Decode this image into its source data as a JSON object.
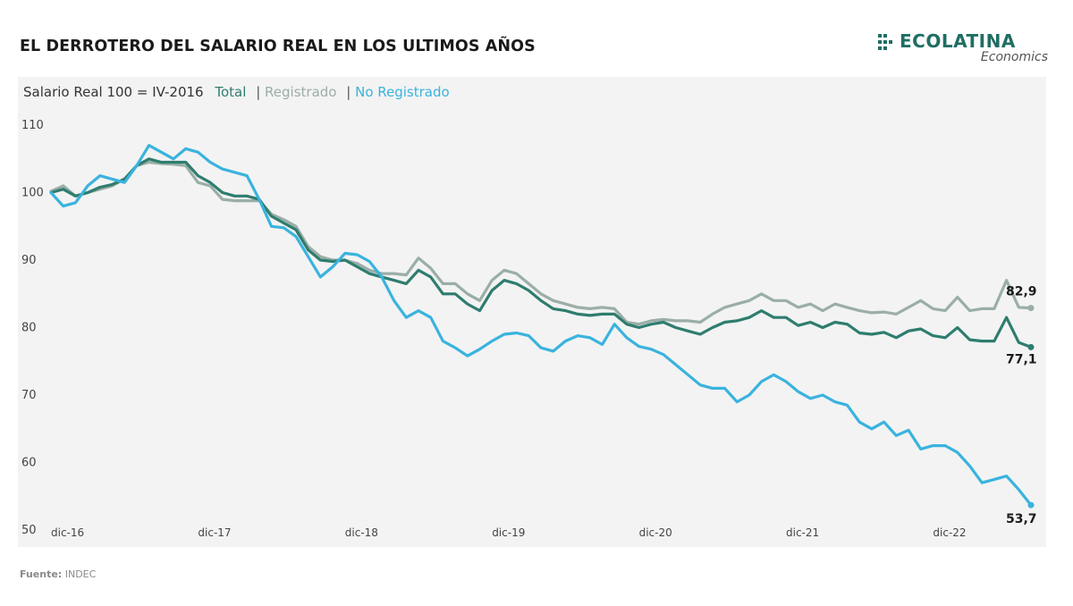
{
  "header": {
    "title": "EL DERROTERO DEL SALARIO REAL EN LOS ULTIMOS AÑOS"
  },
  "logo": {
    "name": "ECOLATINA",
    "sub": "Economics",
    "color": "#1f6e63"
  },
  "footer": {
    "source_label": "Fuente:",
    "source_value": "INDEC"
  },
  "chart_data": {
    "type": "line",
    "subtitle": "Salario Real 100 = IV-2016",
    "ylim": [
      50,
      110
    ],
    "yticks": [
      110,
      100,
      90,
      80,
      70,
      60,
      50
    ],
    "x_tick_labels": [
      "dic-16",
      "dic-17",
      "dic-18",
      "dic-19",
      "dic-20",
      "dic-21",
      "dic-22"
    ],
    "x_tick_indices": [
      0,
      12,
      24,
      36,
      48,
      60,
      72
    ],
    "grid": false,
    "series": [
      {
        "name": "Total",
        "color": "#2e7d6e",
        "end_label": "77,1",
        "values": [
          100.0,
          100.5,
          99.5,
          100.0,
          100.8,
          101.2,
          102.0,
          104.0,
          105.0,
          104.5,
          104.5,
          104.5,
          102.5,
          101.5,
          100.0,
          99.5,
          99.5,
          99.0,
          96.5,
          95.5,
          94.5,
          91.5,
          90.0,
          89.8,
          90.0,
          89.0,
          88.0,
          87.5,
          87.0,
          86.5,
          88.5,
          87.5,
          85.0,
          85.0,
          83.5,
          82.5,
          85.5,
          87.0,
          86.5,
          85.5,
          84.0,
          82.8,
          82.5,
          82.0,
          81.8,
          82.0,
          82.0,
          80.5,
          80.0,
          80.5,
          80.8,
          80.0,
          79.5,
          79.0,
          80.0,
          80.8,
          81.0,
          81.5,
          82.5,
          81.5,
          81.5,
          80.3,
          80.8,
          80.0,
          80.8,
          80.5,
          79.2,
          79.0,
          79.3,
          78.5,
          79.5,
          79.8,
          78.8,
          78.5,
          80.0,
          78.2,
          78.0,
          78.0,
          81.5,
          77.8,
          77.1
        ]
      },
      {
        "name": "Registrado",
        "color": "#9aaea7",
        "end_label": "82,9",
        "values": [
          100.2,
          101.0,
          99.5,
          100.0,
          100.5,
          101.0,
          102.0,
          104.0,
          104.5,
          104.3,
          104.2,
          104.0,
          101.5,
          101.0,
          99.0,
          98.8,
          98.8,
          98.8,
          96.8,
          96.0,
          95.0,
          92.0,
          90.5,
          90.0,
          90.0,
          89.5,
          88.5,
          88.0,
          88.0,
          87.8,
          90.3,
          88.8,
          86.5,
          86.5,
          85.0,
          84.0,
          87.0,
          88.5,
          88.0,
          86.5,
          85.0,
          84.0,
          83.5,
          83.0,
          82.8,
          83.0,
          82.8,
          80.8,
          80.5,
          81.0,
          81.2,
          81.0,
          81.0,
          80.8,
          82.0,
          83.0,
          83.5,
          84.0,
          85.0,
          84.0,
          84.0,
          83.0,
          83.5,
          82.5,
          83.5,
          83.0,
          82.5,
          82.2,
          82.3,
          82.0,
          83.0,
          84.0,
          82.8,
          82.5,
          84.5,
          82.5,
          82.8,
          82.8,
          87.0,
          83.0,
          82.9
        ]
      },
      {
        "name": "No Registrado",
        "color": "#3ab3de",
        "end_label": "53,7",
        "values": [
          100.0,
          98.0,
          98.5,
          101.0,
          102.5,
          102.0,
          101.5,
          104.0,
          107.0,
          106.0,
          105.0,
          106.5,
          106.0,
          104.5,
          103.5,
          103.0,
          102.5,
          99.0,
          95.0,
          94.8,
          93.5,
          90.5,
          87.5,
          89.0,
          91.0,
          90.8,
          89.8,
          87.5,
          84.0,
          81.5,
          82.5,
          81.5,
          78.0,
          77.0,
          75.8,
          76.8,
          78.0,
          79.0,
          79.2,
          78.8,
          77.0,
          76.5,
          78.0,
          78.8,
          78.5,
          77.5,
          80.5,
          78.5,
          77.2,
          76.8,
          76.0,
          74.5,
          73.0,
          71.5,
          71.0,
          71.0,
          69.0,
          70.0,
          72.0,
          73.0,
          72.0,
          70.5,
          69.5,
          70.0,
          69.0,
          68.5,
          66.0,
          65.0,
          66.0,
          64.0,
          64.8,
          62.0,
          62.5,
          62.5,
          61.5,
          59.5,
          57.0,
          57.5,
          58.0,
          56.0,
          53.7
        ]
      }
    ]
  }
}
